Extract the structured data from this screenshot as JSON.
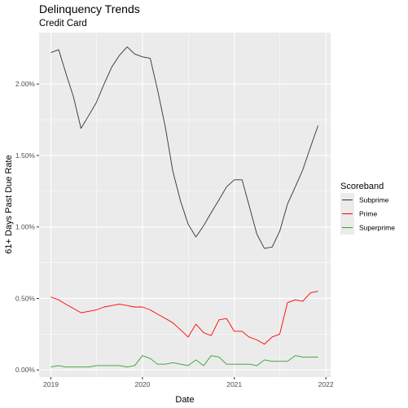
{
  "chart_data": {
    "type": "line",
    "title": "Delinquency Trends",
    "subtitle": "Credit Card",
    "xlabel": "Date",
    "ylabel": "61+ Days Past Due Rate",
    "x_ticks": [
      "2019",
      "2020",
      "2021",
      "2022"
    ],
    "y_ticks": [
      "0.00%",
      "0.50%",
      "1.00%",
      "1.50%",
      "2.00%"
    ],
    "y_tick_values": [
      0,
      0.5,
      1.0,
      1.5,
      2.0
    ],
    "xlim": [
      "2018-11-15",
      "2022-01-20"
    ],
    "ylim": [
      -0.05,
      2.36
    ],
    "grid": true,
    "legend_title": "Scoreband",
    "legend_position": "right",
    "x": [
      "2019-01",
      "2019-02",
      "2019-03",
      "2019-04",
      "2019-05",
      "2019-06",
      "2019-07",
      "2019-08",
      "2019-09",
      "2019-10",
      "2019-11",
      "2019-12",
      "2020-01",
      "2020-02",
      "2020-03",
      "2020-04",
      "2020-05",
      "2020-06",
      "2020-07",
      "2020-08",
      "2020-09",
      "2020-10",
      "2020-11",
      "2020-12",
      "2021-01",
      "2021-02",
      "2021-03",
      "2021-04",
      "2021-05",
      "2021-06",
      "2021-07",
      "2021-08",
      "2021-09",
      "2021-10",
      "2021-11",
      "2021-12"
    ],
    "series": [
      {
        "name": "Subprime",
        "color": "#333333",
        "values": [
          2.22,
          2.24,
          2.08,
          1.91,
          1.69,
          1.78,
          1.87,
          2.0,
          2.12,
          2.2,
          2.26,
          2.21,
          2.19,
          2.18,
          1.96,
          1.7,
          1.39,
          1.18,
          1.02,
          0.93,
          1.01,
          1.1,
          1.19,
          1.28,
          1.33,
          1.33,
          1.15,
          0.95,
          0.85,
          0.86,
          0.97,
          1.16,
          1.28,
          1.4,
          1.56,
          1.71
        ]
      },
      {
        "name": "Prime",
        "color": "#ff0000",
        "values": [
          0.51,
          0.49,
          0.46,
          0.43,
          0.4,
          0.41,
          0.42,
          0.44,
          0.45,
          0.46,
          0.45,
          0.44,
          0.44,
          0.42,
          0.39,
          0.36,
          0.33,
          0.28,
          0.23,
          0.32,
          0.26,
          0.24,
          0.35,
          0.36,
          0.27,
          0.27,
          0.23,
          0.21,
          0.18,
          0.23,
          0.25,
          0.47,
          0.49,
          0.48,
          0.54,
          0.55
        ]
      },
      {
        "name": "Superprime",
        "color": "#33a02c",
        "values": [
          0.02,
          0.03,
          0.02,
          0.02,
          0.02,
          0.02,
          0.03,
          0.03,
          0.03,
          0.03,
          0.02,
          0.03,
          0.1,
          0.08,
          0.04,
          0.04,
          0.05,
          0.04,
          0.03,
          0.07,
          0.03,
          0.1,
          0.09,
          0.04,
          0.04,
          0.04,
          0.04,
          0.03,
          0.07,
          0.06,
          0.06,
          0.06,
          0.1,
          0.09,
          0.09,
          0.09
        ]
      }
    ]
  }
}
